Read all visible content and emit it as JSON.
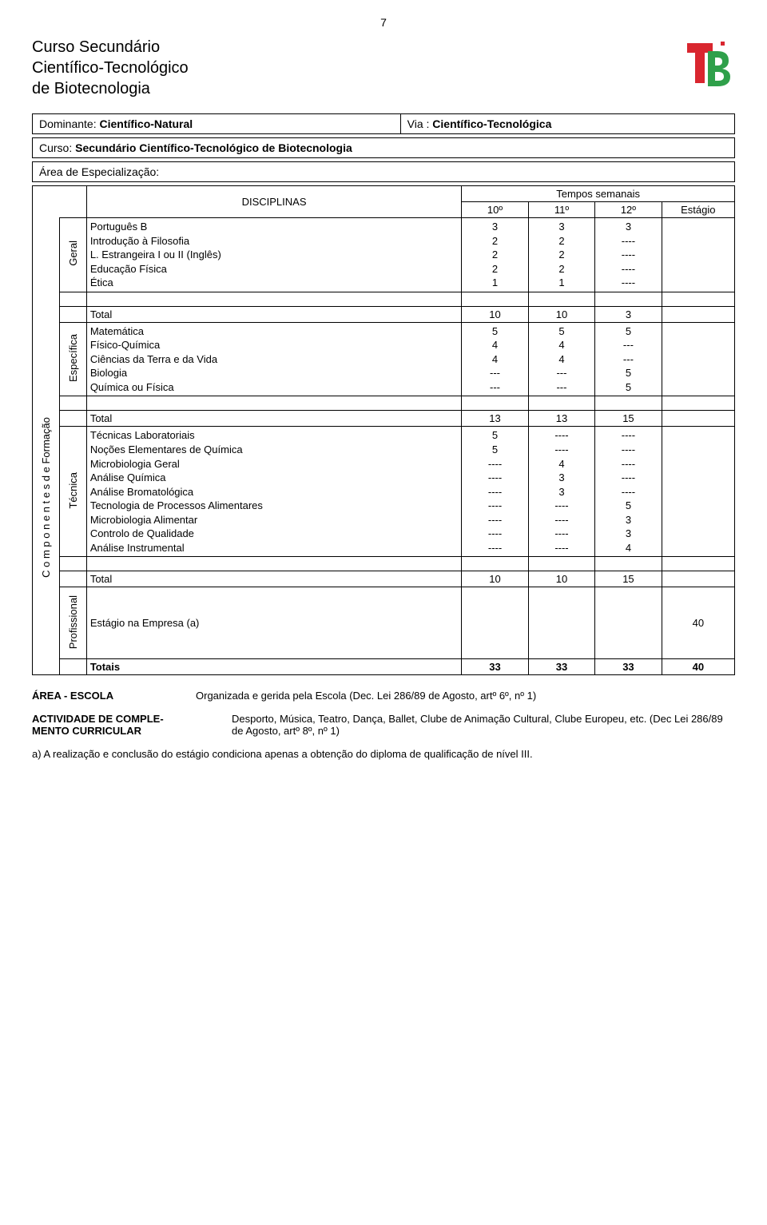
{
  "page_number": "7",
  "title_lines": [
    "Curso Secundário",
    "Científico-Tecnológico",
    "de Biotecnologia"
  ],
  "dominante_label": "Dominante:",
  "dominante_value": "Científico-Natural",
  "via_label": "Via :",
  "via_value": "Científico-Tecnológica",
  "curso_label": "Curso:",
  "curso_value": "Secundário Científico-Tecnológico de Biotecnologia",
  "area_label": "Área de Especialização:",
  "area_value": "",
  "header": {
    "disciplinas": "DISCIPLINAS",
    "tempos": "Tempos semanais",
    "y10": "10º",
    "y11": "11º",
    "y12": "12º",
    "estagio": "Estágio"
  },
  "sidebar_main": "C o m p o n e n t e s    d e    Formação",
  "groups": {
    "geral": {
      "label": "Geral",
      "disc": [
        "Português B",
        "Introdução à Filosofia",
        "L. Estrangeira I ou II (Inglês)",
        "Educação Física",
        "Ética"
      ],
      "y10": [
        "3",
        "2",
        "2",
        "2",
        "1"
      ],
      "y11": [
        "3",
        "2",
        "2",
        "2",
        "1"
      ],
      "y12": [
        "3",
        "----",
        "----",
        "----",
        "----"
      ]
    },
    "especifica": {
      "label": "Específica",
      "disc": [
        "Matemática",
        "Físico-Química",
        "Ciências da Terra e da Vida",
        "Biologia",
        "Química ou Física"
      ],
      "y10": [
        "5",
        "4",
        "4",
        "---",
        "---"
      ],
      "y11": [
        "5",
        "4",
        "4",
        "---",
        "---"
      ],
      "y12": [
        "5",
        "---",
        "---",
        "5",
        "5"
      ]
    },
    "tecnica": {
      "label": "Técnica",
      "disc": [
        "Técnicas Laboratoriais",
        "Noções Elementares de Química",
        "Microbiologia Geral",
        "Análise Química",
        "Análise Bromatológica",
        "Tecnologia de Processos Alimentares",
        "Microbiologia Alimentar",
        "Controlo de Qualidade",
        "Análise Instrumental"
      ],
      "y10": [
        "5",
        "5",
        "----",
        "----",
        "----",
        "----",
        "----",
        "----",
        "----"
      ],
      "y11": [
        "----",
        "----",
        "4",
        "3",
        "3",
        "----",
        "----",
        "----",
        "----"
      ],
      "y12": [
        "----",
        "----",
        "----",
        "----",
        "----",
        "5",
        "3",
        "3",
        "4"
      ]
    },
    "profissional": {
      "label": "Profissional",
      "disc": [
        "Estágio na Empresa (a)"
      ],
      "est": [
        "40"
      ]
    }
  },
  "totals": {
    "label": "Total",
    "t1": {
      "y10": "10",
      "y11": "10",
      "y12": "3"
    },
    "t2": {
      "y10": "13",
      "y11": "13",
      "y12": "15"
    },
    "t3": {
      "y10": "10",
      "y11": "10",
      "y12": "15"
    },
    "final_label": "Totais",
    "final": {
      "y10": "33",
      "y11": "33",
      "y12": "33",
      "est": "40"
    }
  },
  "area_escola": {
    "label": "ÁREA - ESCOLA",
    "text": "Organizada e gerida pela Escola (Dec. Lei 286/89 de Agosto, artº 6º, nº 1)"
  },
  "actividade": {
    "label_l1": "ACTIVIDADE DE COMPLE-",
    "label_l2": "MENTO CURRICULAR",
    "text": "Desporto, Música, Teatro, Dança, Ballet, Clube de Animação Cultural, Clube Europeu, etc. (Dec Lei 286/89 de Agosto, artº 8º, nº 1)"
  },
  "footnote": "a) A realização e conclusão do estágio condiciona apenas a obtenção do diploma de qualificação de nível III.",
  "colors": {
    "logo_t": "#d9262f",
    "logo_b": "#2fa04a"
  }
}
